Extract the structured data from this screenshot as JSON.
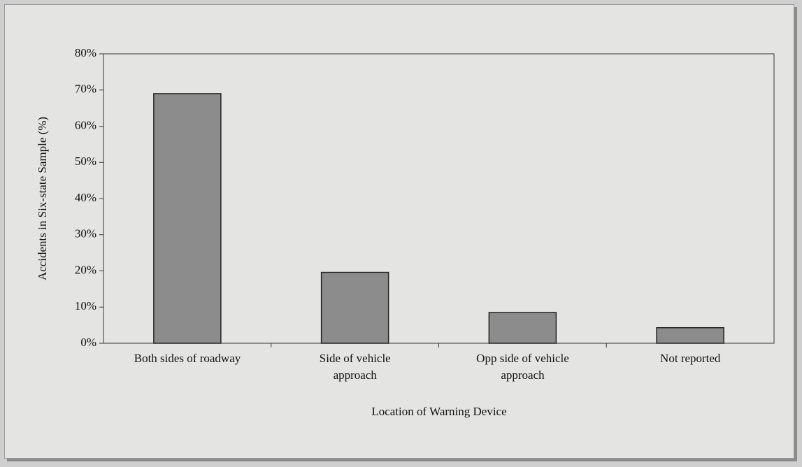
{
  "chart_data": {
    "type": "bar",
    "categories": [
      "Both sides of roadway",
      "Side of vehicle\napproach",
      "Opp side of vehicle\napproach",
      "Not reported"
    ],
    "values": [
      69,
      19.6,
      8.5,
      4.3
    ],
    "color": "#8c8c8c",
    "x_label": "Location of Warning Device",
    "y_label": "Accidents in Six-state Sample (%)",
    "ylim": [
      0,
      80
    ],
    "yticks": [
      {
        "value": 0,
        "label": "0%"
      },
      {
        "value": 10,
        "label": "10%"
      },
      {
        "value": 20,
        "label": "20%"
      },
      {
        "value": 30,
        "label": "30%"
      },
      {
        "value": 40,
        "label": "40%"
      },
      {
        "value": 50,
        "label": "50%"
      },
      {
        "value": 60,
        "label": "60%"
      },
      {
        "value": 70,
        "label": "70%"
      },
      {
        "value": 80,
        "label": "80%"
      }
    ],
    "grid": false
  }
}
